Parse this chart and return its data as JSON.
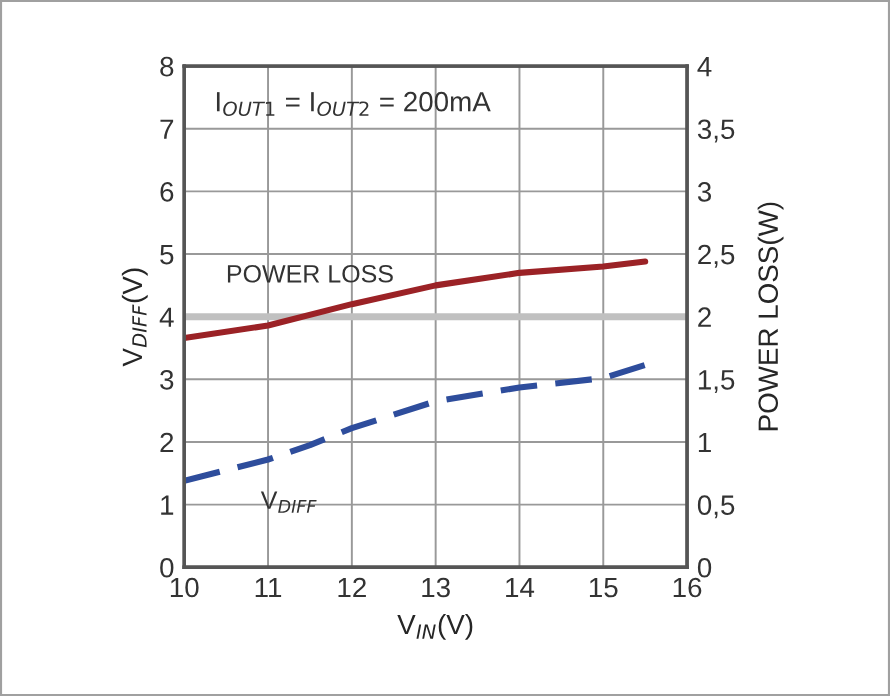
{
  "chart_data": {
    "type": "line",
    "xlabel": "V$_{IN}$(V)",
    "ylabel": "V$_{DIFF}$(V)",
    "y2label": "POWER LOSS(W)",
    "annotations": [
      "I$_{OUT1}$ = I$_{OUT2}$ = 200mA"
    ],
    "xlim": [
      10,
      16
    ],
    "xticks": [
      10,
      11,
      12,
      13,
      14,
      15,
      16
    ],
    "ylim": [
      0,
      8
    ],
    "yticks": [
      0,
      1,
      2,
      3,
      4,
      5,
      6,
      7,
      8
    ],
    "y2lim": [
      0,
      4
    ],
    "y2ticks": [
      0,
      {
        "value": 0.5,
        "label": "0,5"
      },
      1,
      {
        "value": 1.5,
        "label": "1,5"
      },
      2,
      {
        "value": 2.5,
        "label": "2,5"
      },
      3,
      {
        "value": 3.5,
        "label": "3,5"
      },
      4
    ],
    "series": [
      {
        "name": "POWER LOSS",
        "color": "#9b2226",
        "axis": "y2",
        "line_style": "solid",
        "x": [
          10,
          11,
          12,
          13,
          14,
          15,
          15.5
        ],
        "values": [
          1.83,
          1.93,
          2.1,
          2.25,
          2.35,
          2.4,
          2.44
        ]
      },
      {
        "name": "V$_{DIFF}$",
        "color": "#2e4d9c",
        "line_style": "dashed",
        "x": [
          10,
          11,
          11.5,
          12,
          13,
          14,
          15,
          15.5
        ],
        "values": [
          1.38,
          1.72,
          1.95,
          2.22,
          2.65,
          2.87,
          3.02,
          3.23
        ]
      }
    ],
    "ref_lines": [
      {
        "axis": "y",
        "value": 4,
        "color": "#c0c0c0"
      }
    ],
    "grid": true,
    "legend": false,
    "marker": "none"
  }
}
